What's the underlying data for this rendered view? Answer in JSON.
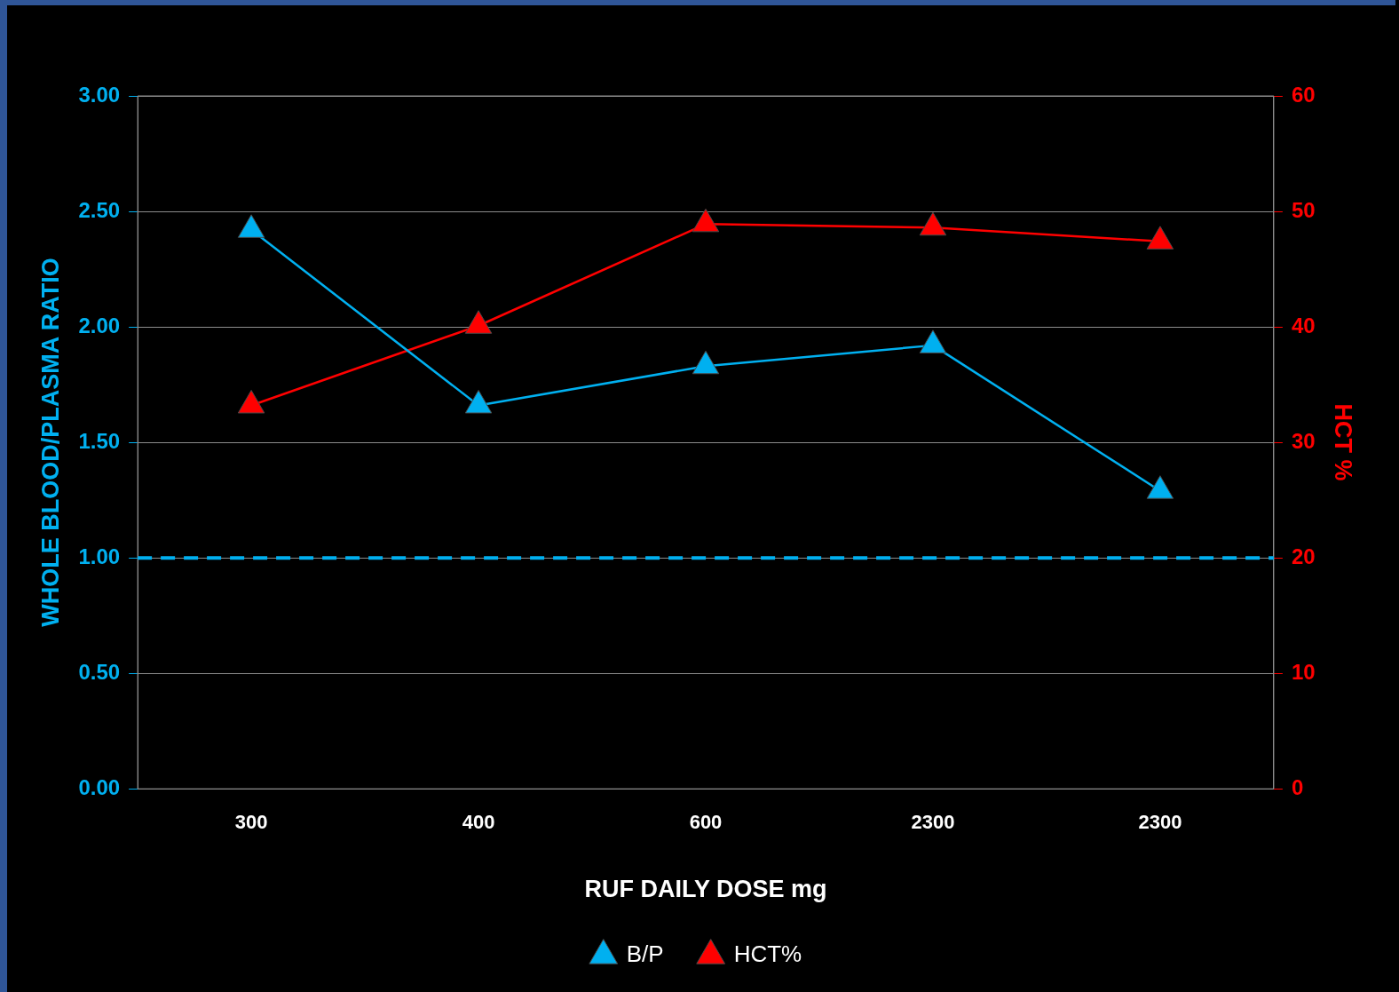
{
  "chart_data": {
    "type": "line",
    "xlabel": "RUF DAILY DOSE mg",
    "ylabel": "WHOLE BLOOD/PLASMA RATIO",
    "y2label": "HCT %",
    "categories": [
      "300",
      "400",
      "600",
      "2300",
      "2300"
    ],
    "series": [
      {
        "name": "B/P",
        "color": "#00b0f0",
        "values": [
          2.42,
          1.66,
          1.83,
          1.92,
          1.29
        ]
      },
      {
        "name": "HCT%",
        "color": "#ff0000",
        "axis": "y2",
        "values": [
          33.2,
          40.1,
          48.9,
          48.6,
          47.4
        ]
      }
    ],
    "ylim": [
      0,
      3
    ],
    "yticks": [
      {
        "value": 0,
        "label": "0.00"
      },
      {
        "value": 0.5,
        "label": "0.50"
      },
      {
        "value": 1,
        "label": "1.00"
      },
      {
        "value": 1.5,
        "label": "1.50"
      },
      {
        "value": 2,
        "label": "2.00"
      },
      {
        "value": 2.5,
        "label": "2.50"
      },
      {
        "value": 3,
        "label": "3.00"
      }
    ],
    "y2lim": [
      0,
      60
    ],
    "y2ticks": [
      0,
      10,
      20,
      30,
      40,
      50,
      60
    ],
    "ref_lines": [
      {
        "axis": "y",
        "value": 1,
        "color": "#00b0f0",
        "line_style": "dashed"
      }
    ],
    "grid": "y",
    "legend": "bottom",
    "marker": "triangle",
    "line_style": "solid"
  }
}
